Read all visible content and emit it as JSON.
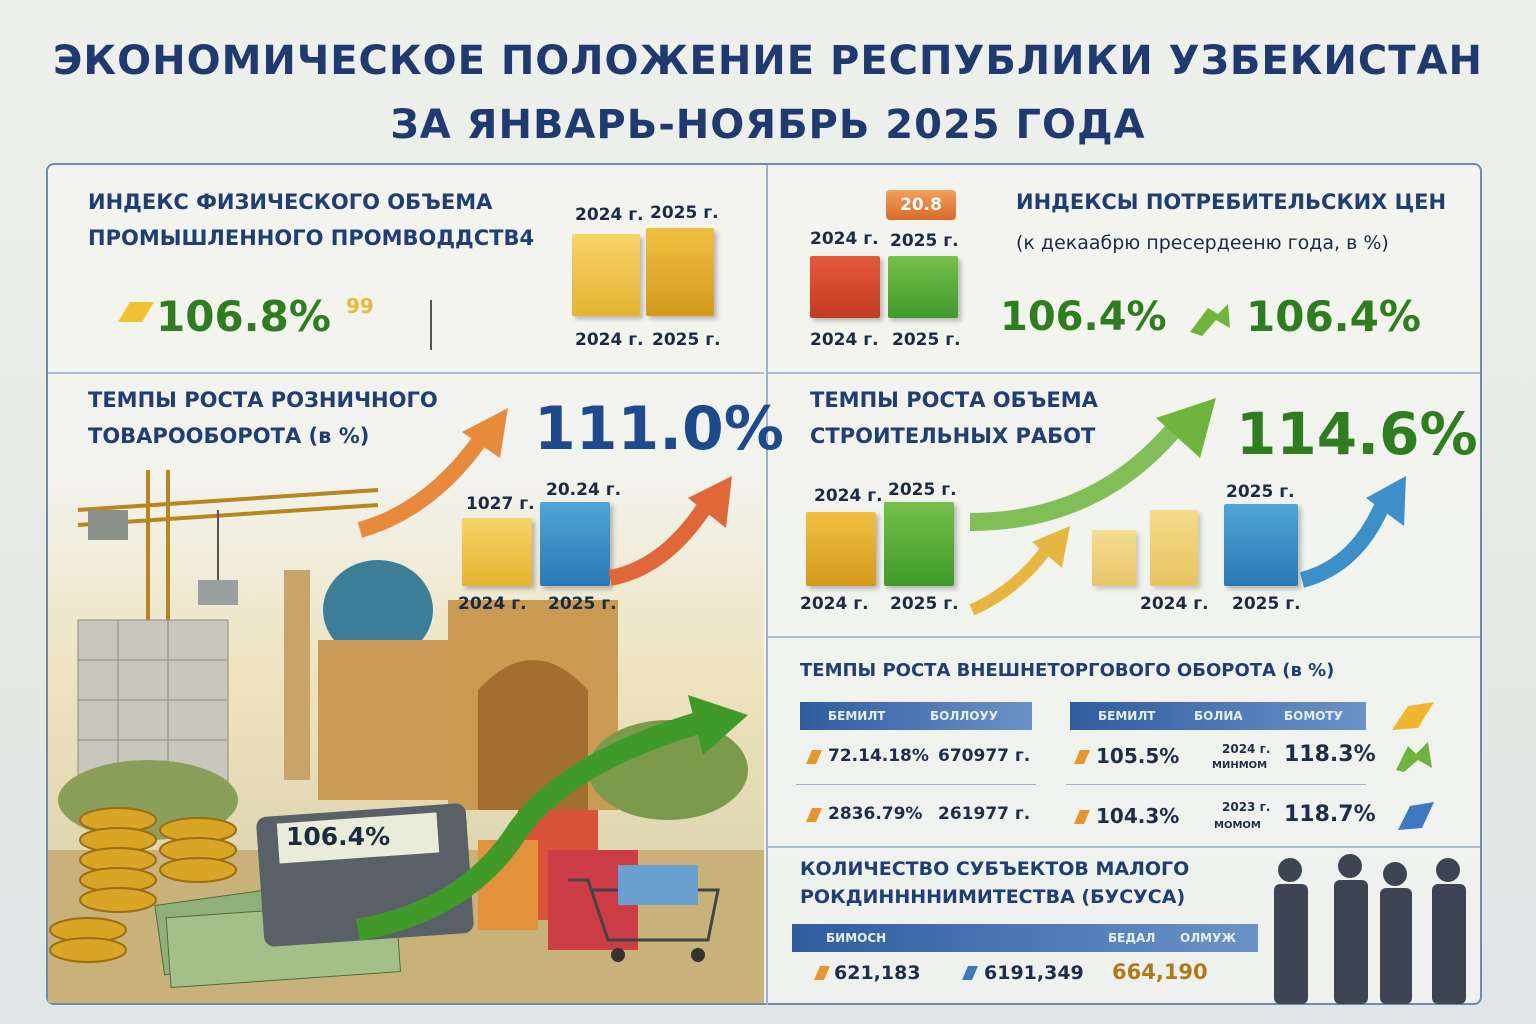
{
  "header": {
    "title_line1": "ЭКОНОМИЧЕСКОЕ ПОЛОЖЕНИЕ РЕСПУБЛИКИ УЗБЕКИСТАН",
    "title_line2": "ЗА ЯНВАРЬ-НОЯБРЬ 2025 ГОДА"
  },
  "industry": {
    "title_line1": "ИНДЕКС ФИЗИЧЕСКОГО ОБЪЕМА",
    "title_line2": "ПРОМЫШЛЕННОГО ПРОМВОДДСТВ4",
    "value": "106.8%",
    "value_suffix": "99",
    "year_top_a": "2024 г.",
    "year_top_b": "2025 г.",
    "year_bottom_a": "2024 г.",
    "year_bottom_b": "2025 г."
  },
  "cpi": {
    "badge": "20.8",
    "title_line1": "ИНДЕКСЫ ПОТРЕБИТЕЛЬСКИХ ЦЕН",
    "title_line2": "(к декаабрю пресердееню года, в %)",
    "value_a": "106.4%",
    "value_b": "106.4%",
    "year_top_a": "2024 г.",
    "year_top_b": "2025 г.",
    "year_bottom_a": "2024 г.",
    "year_bottom_b": "2025 г."
  },
  "retail": {
    "title_line1": "ТЕМПЫ РОСТА РОЗНИЧНОГО",
    "title_line2": "ТОВАРООБОРОТА (в %)",
    "value": "111.0%",
    "year_top_a": "1027 г.",
    "year_top_b": "20.24 г.",
    "year_bottom_a": "2024 г.",
    "year_bottom_b": "2025 г."
  },
  "construction": {
    "title_line1": "ТЕМПЫ РОСТА ОБЪЕМА",
    "title_line2": "СТРОИТЕЛЬНЫХ РАБОТ",
    "value": "114.6%",
    "year_top_a": "2024 г.",
    "year_top_b": "2025 г.",
    "year_top_c": "2025 г.",
    "year_bottom_a": "2024 г.",
    "year_bottom_b": "2025 г.",
    "year_bottom_c": "2024 г.",
    "year_bottom_d": "2025 г."
  },
  "foreign_trade": {
    "title": "ТЕМПЫ РОСТА ВНЕШНЕТОРГОВОГО ОБОРОТА (в %)",
    "left_head": [
      "БЕМИЛТ",
      "БОЛЛОУУ"
    ],
    "right_head": [
      "БЕМИЛТ",
      "БОЛИА",
      "БОМОТУ"
    ],
    "left_rows": [
      {
        "a": "72.14.18%",
        "b": "670977 г."
      },
      {
        "a": "2836.79%",
        "b": "261977 г."
      }
    ],
    "right_rows": [
      {
        "a": "105.5%",
        "year": "2024 г.",
        "sub": "МИНМОМ",
        "b": "118.3%"
      },
      {
        "a": "104.3%",
        "year": "2023 г.",
        "sub": "МОМОМ",
        "b": "118.7%"
      }
    ]
  },
  "small_business": {
    "title_line1": "КОЛИЧЕСТВО СУБЪЕКТОВ МАЛОГО",
    "title_line2": "РОКДИННННИМИТЕСТВА (БУСУСА)",
    "head": [
      "БИМОСН",
      "БЕДАЛ",
      "ОЛМУЖ"
    ],
    "values": [
      "621,183",
      "6191,349",
      "664,190"
    ]
  },
  "scene": {
    "calculator_display": "106.4%"
  },
  "colors": {
    "title": "#1f3a70",
    "green_value": "#2e7d1f",
    "blue_value": "#1c4a8c",
    "frame": "#6d8ab0"
  }
}
